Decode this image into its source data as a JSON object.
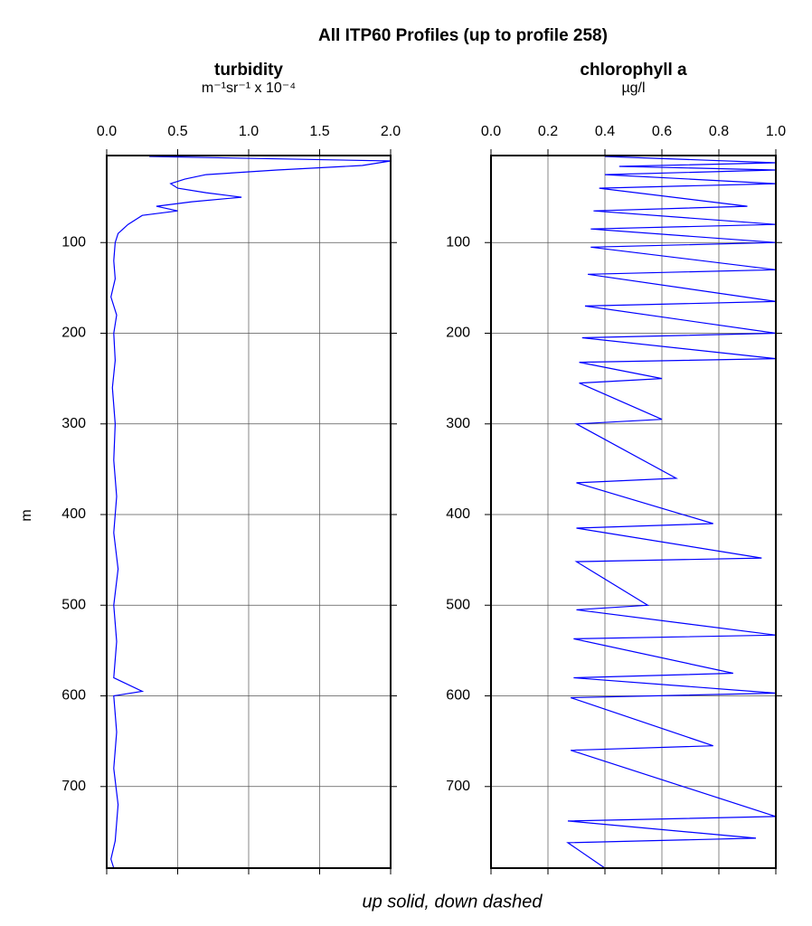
{
  "title": "All ITP60 Profiles (up to profile 258)",
  "caption": "up solid, down dashed",
  "chart_data": [
    {
      "type": "line",
      "title": "turbidity",
      "subtitle": "m⁻¹sr⁻¹ x 10⁻⁴",
      "ylabel": "m",
      "color": "#0000ff",
      "grid": true,
      "y_reversed": true,
      "xlim": [
        0,
        2
      ],
      "xticks": [
        {
          "value": 0,
          "label": "0.0"
        },
        {
          "value": 0.5,
          "label": "0.5"
        },
        {
          "value": 1,
          "label": "1.0"
        },
        {
          "value": 1.5,
          "label": "1.5"
        },
        {
          "value": 2,
          "label": "2.0"
        }
      ],
      "ylim": [
        4,
        790
      ],
      "yticks": [
        100,
        200,
        300,
        400,
        500,
        600,
        700
      ],
      "x": [
        0.3,
        2.0,
        1.8,
        1.2,
        0.7,
        0.55,
        0.45,
        0.5,
        0.7,
        0.95,
        0.6,
        0.35,
        0.5,
        0.25,
        0.15,
        0.08,
        0.06,
        0.05,
        0.06,
        0.03,
        0.07,
        0.05,
        0.06,
        0.04,
        0.06,
        0.05,
        0.07,
        0.05,
        0.08,
        0.05,
        0.07,
        0.05,
        0.25,
        0.05,
        0.07,
        0.05,
        0.08,
        0.06,
        0.03,
        0.05
      ],
      "values": [
        5,
        10,
        15,
        20,
        25,
        30,
        35,
        40,
        45,
        50,
        55,
        60,
        65,
        70,
        80,
        90,
        100,
        120,
        140,
        160,
        180,
        200,
        230,
        260,
        300,
        340,
        380,
        420,
        460,
        500,
        540,
        580,
        595,
        600,
        640,
        680,
        720,
        760,
        780,
        790
      ]
    },
    {
      "type": "line",
      "title": "chlorophyll a",
      "subtitle": "µg/l",
      "color": "#0000ff",
      "grid": true,
      "y_reversed": true,
      "xlim": [
        0,
        1
      ],
      "xticks": [
        {
          "value": 0,
          "label": "0.0"
        },
        {
          "value": 0.2,
          "label": "0.2"
        },
        {
          "value": 0.4,
          "label": "0.4"
        },
        {
          "value": 0.6,
          "label": "0.6"
        },
        {
          "value": 0.8,
          "label": "0.8"
        },
        {
          "value": 1,
          "label": "1.0"
        }
      ],
      "ylim": [
        4,
        790
      ],
      "yticks": [
        100,
        200,
        300,
        400,
        500,
        600,
        700
      ],
      "x": [
        0.4,
        1.0,
        0.45,
        1.0,
        0.4,
        0.7,
        1.0,
        0.38,
        0.9,
        0.36,
        1.0,
        0.35,
        1.0,
        0.35,
        1.0,
        0.34,
        1.0,
        0.33,
        1.0,
        0.32,
        1.0,
        0.31,
        0.6,
        0.31,
        0.6,
        0.3,
        0.65,
        0.3,
        0.78,
        0.3,
        0.95,
        0.3,
        0.55,
        0.3,
        1.0,
        0.29,
        0.85,
        0.29,
        1.0,
        0.28,
        0.78,
        0.28,
        1.0,
        0.27,
        0.93,
        0.27,
        0.4
      ],
      "values": [
        5,
        12,
        16,
        20,
        25,
        30,
        35,
        40,
        60,
        65,
        80,
        85,
        100,
        105,
        130,
        135,
        165,
        170,
        200,
        205,
        228,
        232,
        250,
        255,
        295,
        300,
        360,
        365,
        410,
        415,
        448,
        452,
        500,
        505,
        533,
        537,
        575,
        580,
        597,
        602,
        655,
        660,
        733,
        738,
        757,
        762,
        790
      ]
    }
  ]
}
